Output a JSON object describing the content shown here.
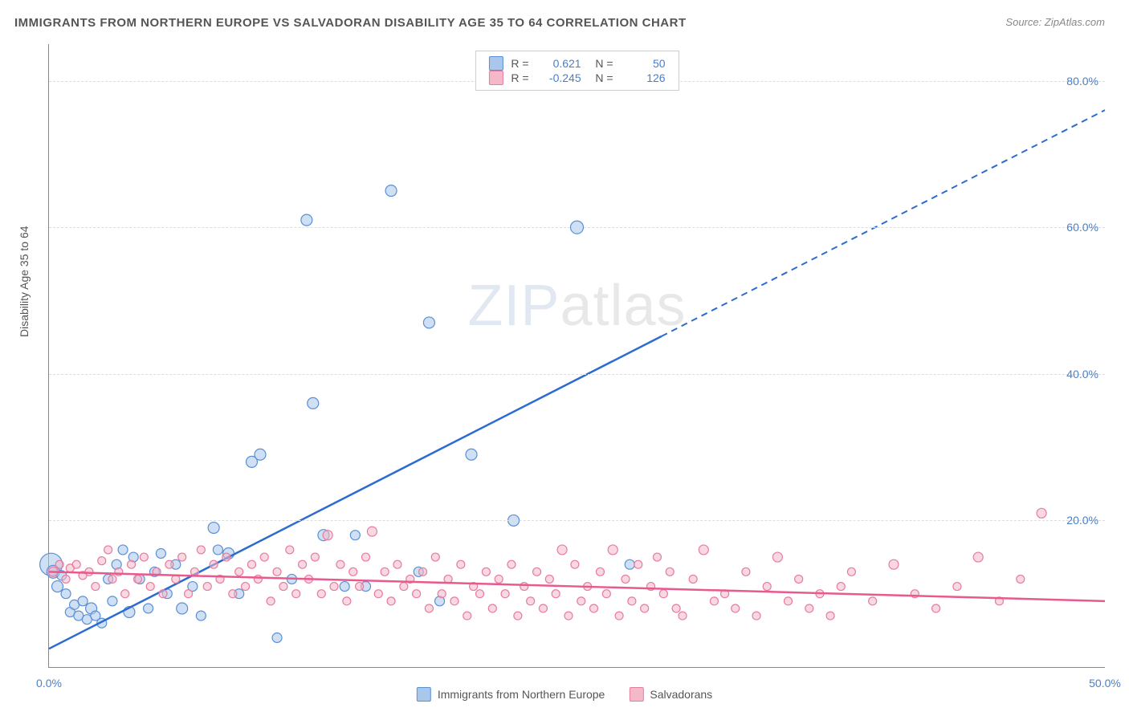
{
  "title": "IMMIGRANTS FROM NORTHERN EUROPE VS SALVADORAN DISABILITY AGE 35 TO 64 CORRELATION CHART",
  "source_label": "Source:",
  "source_name": "ZipAtlas.com",
  "y_axis_title": "Disability Age 35 to 64",
  "watermark": {
    "part1": "ZIP",
    "part2": "atlas"
  },
  "chart": {
    "type": "scatter",
    "xlim": [
      0,
      50
    ],
    "ylim": [
      0,
      85
    ],
    "x_ticks": [
      {
        "value": 0,
        "label": "0.0%"
      },
      {
        "value": 50,
        "label": "50.0%"
      }
    ],
    "y_ticks": [
      {
        "value": 20,
        "label": "20.0%"
      },
      {
        "value": 40,
        "label": "40.0%"
      },
      {
        "value": 60,
        "label": "60.0%"
      },
      {
        "value": 80,
        "label": "80.0%"
      }
    ],
    "background_color": "#ffffff",
    "grid_color": "#dddddd",
    "axis_color": "#888888",
    "series": [
      {
        "name": "Immigrants from Northern Europe",
        "fill_color": "#a9c6eb",
        "stroke_color": "#5a8fd6",
        "fill_opacity": 0.55,
        "line_color": "#2c6bd1",
        "R": "0.621",
        "N": "50",
        "trend": {
          "x1": 0,
          "y1": 2.5,
          "x2": 50,
          "y2": 76,
          "solid_until_x": 29
        },
        "points": [
          {
            "x": 0.1,
            "y": 14,
            "r": 14
          },
          {
            "x": 0.2,
            "y": 13,
            "r": 8
          },
          {
            "x": 0.4,
            "y": 11,
            "r": 7
          },
          {
            "x": 0.6,
            "y": 12.5,
            "r": 6
          },
          {
            "x": 0.8,
            "y": 10,
            "r": 6
          },
          {
            "x": 1.0,
            "y": 7.5,
            "r": 6
          },
          {
            "x": 1.2,
            "y": 8.5,
            "r": 6
          },
          {
            "x": 1.4,
            "y": 7,
            "r": 6
          },
          {
            "x": 1.6,
            "y": 9,
            "r": 6
          },
          {
            "x": 1.8,
            "y": 6.5,
            "r": 6
          },
          {
            "x": 2.0,
            "y": 8,
            "r": 7
          },
          {
            "x": 2.2,
            "y": 7,
            "r": 6
          },
          {
            "x": 2.5,
            "y": 6,
            "r": 6
          },
          {
            "x": 2.8,
            "y": 12,
            "r": 6
          },
          {
            "x": 3.0,
            "y": 9,
            "r": 6
          },
          {
            "x": 3.2,
            "y": 14,
            "r": 6
          },
          {
            "x": 3.5,
            "y": 16,
            "r": 6
          },
          {
            "x": 3.8,
            "y": 7.5,
            "r": 7
          },
          {
            "x": 4.0,
            "y": 15,
            "r": 6
          },
          {
            "x": 4.3,
            "y": 12,
            "r": 6
          },
          {
            "x": 4.7,
            "y": 8,
            "r": 6
          },
          {
            "x": 5.0,
            "y": 13,
            "r": 6
          },
          {
            "x": 5.3,
            "y": 15.5,
            "r": 6
          },
          {
            "x": 5.6,
            "y": 10,
            "r": 6
          },
          {
            "x": 6.0,
            "y": 14,
            "r": 6
          },
          {
            "x": 6.3,
            "y": 8,
            "r": 7
          },
          {
            "x": 6.8,
            "y": 11,
            "r": 6
          },
          {
            "x": 7.2,
            "y": 7,
            "r": 6
          },
          {
            "x": 7.8,
            "y": 19,
            "r": 7
          },
          {
            "x": 8.0,
            "y": 16,
            "r": 6
          },
          {
            "x": 8.5,
            "y": 15.5,
            "r": 7
          },
          {
            "x": 9.0,
            "y": 10,
            "r": 6
          },
          {
            "x": 9.6,
            "y": 28,
            "r": 7
          },
          {
            "x": 10.0,
            "y": 29,
            "r": 7
          },
          {
            "x": 10.8,
            "y": 4,
            "r": 6
          },
          {
            "x": 11.5,
            "y": 12,
            "r": 6
          },
          {
            "x": 12.2,
            "y": 61,
            "r": 7
          },
          {
            "x": 12.5,
            "y": 36,
            "r": 7
          },
          {
            "x": 13.0,
            "y": 18,
            "r": 7
          },
          {
            "x": 14.0,
            "y": 11,
            "r": 6
          },
          {
            "x": 14.5,
            "y": 18,
            "r": 6
          },
          {
            "x": 15.0,
            "y": 11,
            "r": 6
          },
          {
            "x": 16.2,
            "y": 65,
            "r": 7
          },
          {
            "x": 17.5,
            "y": 13,
            "r": 6
          },
          {
            "x": 18.0,
            "y": 47,
            "r": 7
          },
          {
            "x": 18.5,
            "y": 9,
            "r": 6
          },
          {
            "x": 20.0,
            "y": 29,
            "r": 7
          },
          {
            "x": 22.0,
            "y": 20,
            "r": 7
          },
          {
            "x": 25.0,
            "y": 60,
            "r": 8
          },
          {
            "x": 27.5,
            "y": 14,
            "r": 6
          }
        ]
      },
      {
        "name": "Salvadorans",
        "fill_color": "#f4b9c9",
        "stroke_color": "#e87ba0",
        "fill_opacity": 0.55,
        "line_color": "#e85a8f",
        "R": "-0.245",
        "N": "126",
        "trend": {
          "x1": 0,
          "y1": 13,
          "x2": 50,
          "y2": 9,
          "solid_until_x": 50
        },
        "points": [
          {
            "x": 0.2,
            "y": 13,
            "r": 6
          },
          {
            "x": 0.5,
            "y": 14,
            "r": 5
          },
          {
            "x": 0.8,
            "y": 12,
            "r": 5
          },
          {
            "x": 1.0,
            "y": 13.5,
            "r": 5
          },
          {
            "x": 1.3,
            "y": 14,
            "r": 5
          },
          {
            "x": 1.6,
            "y": 12.5,
            "r": 5
          },
          {
            "x": 1.9,
            "y": 13,
            "r": 5
          },
          {
            "x": 2.2,
            "y": 11,
            "r": 5
          },
          {
            "x": 2.5,
            "y": 14.5,
            "r": 5
          },
          {
            "x": 2.8,
            "y": 16,
            "r": 5
          },
          {
            "x": 3.0,
            "y": 12,
            "r": 5
          },
          {
            "x": 3.3,
            "y": 13,
            "r": 5
          },
          {
            "x": 3.6,
            "y": 10,
            "r": 5
          },
          {
            "x": 3.9,
            "y": 14,
            "r": 5
          },
          {
            "x": 4.2,
            "y": 12,
            "r": 5
          },
          {
            "x": 4.5,
            "y": 15,
            "r": 5
          },
          {
            "x": 4.8,
            "y": 11,
            "r": 5
          },
          {
            "x": 5.1,
            "y": 13,
            "r": 5
          },
          {
            "x": 5.4,
            "y": 10,
            "r": 5
          },
          {
            "x": 5.7,
            "y": 14,
            "r": 5
          },
          {
            "x": 6.0,
            "y": 12,
            "r": 5
          },
          {
            "x": 6.3,
            "y": 15,
            "r": 5
          },
          {
            "x": 6.6,
            "y": 10,
            "r": 5
          },
          {
            "x": 6.9,
            "y": 13,
            "r": 5
          },
          {
            "x": 7.2,
            "y": 16,
            "r": 5
          },
          {
            "x": 7.5,
            "y": 11,
            "r": 5
          },
          {
            "x": 7.8,
            "y": 14,
            "r": 5
          },
          {
            "x": 8.1,
            "y": 12,
            "r": 5
          },
          {
            "x": 8.4,
            "y": 15,
            "r": 5
          },
          {
            "x": 8.7,
            "y": 10,
            "r": 5
          },
          {
            "x": 9.0,
            "y": 13,
            "r": 5
          },
          {
            "x": 9.3,
            "y": 11,
            "r": 5
          },
          {
            "x": 9.6,
            "y": 14,
            "r": 5
          },
          {
            "x": 9.9,
            "y": 12,
            "r": 5
          },
          {
            "x": 10.2,
            "y": 15,
            "r": 5
          },
          {
            "x": 10.5,
            "y": 9,
            "r": 5
          },
          {
            "x": 10.8,
            "y": 13,
            "r": 5
          },
          {
            "x": 11.1,
            "y": 11,
            "r": 5
          },
          {
            "x": 11.4,
            "y": 16,
            "r": 5
          },
          {
            "x": 11.7,
            "y": 10,
            "r": 5
          },
          {
            "x": 12.0,
            "y": 14,
            "r": 5
          },
          {
            "x": 12.3,
            "y": 12,
            "r": 5
          },
          {
            "x": 12.6,
            "y": 15,
            "r": 5
          },
          {
            "x": 12.9,
            "y": 10,
            "r": 5
          },
          {
            "x": 13.2,
            "y": 18,
            "r": 6
          },
          {
            "x": 13.5,
            "y": 11,
            "r": 5
          },
          {
            "x": 13.8,
            "y": 14,
            "r": 5
          },
          {
            "x": 14.1,
            "y": 9,
            "r": 5
          },
          {
            "x": 14.4,
            "y": 13,
            "r": 5
          },
          {
            "x": 14.7,
            "y": 11,
            "r": 5
          },
          {
            "x": 15.0,
            "y": 15,
            "r": 5
          },
          {
            "x": 15.3,
            "y": 18.5,
            "r": 6
          },
          {
            "x": 15.6,
            "y": 10,
            "r": 5
          },
          {
            "x": 15.9,
            "y": 13,
            "r": 5
          },
          {
            "x": 16.2,
            "y": 9,
            "r": 5
          },
          {
            "x": 16.5,
            "y": 14,
            "r": 5
          },
          {
            "x": 16.8,
            "y": 11,
            "r": 5
          },
          {
            "x": 17.1,
            "y": 12,
            "r": 5
          },
          {
            "x": 17.4,
            "y": 10,
            "r": 5
          },
          {
            "x": 17.7,
            "y": 13,
            "r": 5
          },
          {
            "x": 18.0,
            "y": 8,
            "r": 5
          },
          {
            "x": 18.3,
            "y": 15,
            "r": 5
          },
          {
            "x": 18.6,
            "y": 10,
            "r": 5
          },
          {
            "x": 18.9,
            "y": 12,
            "r": 5
          },
          {
            "x": 19.2,
            "y": 9,
            "r": 5
          },
          {
            "x": 19.5,
            "y": 14,
            "r": 5
          },
          {
            "x": 19.8,
            "y": 7,
            "r": 5
          },
          {
            "x": 20.1,
            "y": 11,
            "r": 5
          },
          {
            "x": 20.4,
            "y": 10,
            "r": 5
          },
          {
            "x": 20.7,
            "y": 13,
            "r": 5
          },
          {
            "x": 21.0,
            "y": 8,
            "r": 5
          },
          {
            "x": 21.3,
            "y": 12,
            "r": 5
          },
          {
            "x": 21.6,
            "y": 10,
            "r": 5
          },
          {
            "x": 21.9,
            "y": 14,
            "r": 5
          },
          {
            "x": 22.2,
            "y": 7,
            "r": 5
          },
          {
            "x": 22.5,
            "y": 11,
            "r": 5
          },
          {
            "x": 22.8,
            "y": 9,
            "r": 5
          },
          {
            "x": 23.1,
            "y": 13,
            "r": 5
          },
          {
            "x": 23.4,
            "y": 8,
            "r": 5
          },
          {
            "x": 23.7,
            "y": 12,
            "r": 5
          },
          {
            "x": 24.0,
            "y": 10,
            "r": 5
          },
          {
            "x": 24.3,
            "y": 16,
            "r": 6
          },
          {
            "x": 24.6,
            "y": 7,
            "r": 5
          },
          {
            "x": 24.9,
            "y": 14,
            "r": 5
          },
          {
            "x": 25.2,
            "y": 9,
            "r": 5
          },
          {
            "x": 25.5,
            "y": 11,
            "r": 5
          },
          {
            "x": 25.8,
            "y": 8,
            "r": 5
          },
          {
            "x": 26.1,
            "y": 13,
            "r": 5
          },
          {
            "x": 26.4,
            "y": 10,
            "r": 5
          },
          {
            "x": 26.7,
            "y": 16,
            "r": 6
          },
          {
            "x": 27.0,
            "y": 7,
            "r": 5
          },
          {
            "x": 27.3,
            "y": 12,
            "r": 5
          },
          {
            "x": 27.6,
            "y": 9,
            "r": 5
          },
          {
            "x": 27.9,
            "y": 14,
            "r": 5
          },
          {
            "x": 28.2,
            "y": 8,
            "r": 5
          },
          {
            "x": 28.5,
            "y": 11,
            "r": 5
          },
          {
            "x": 28.8,
            "y": 15,
            "r": 5
          },
          {
            "x": 29.1,
            "y": 10,
            "r": 5
          },
          {
            "x": 29.4,
            "y": 13,
            "r": 5
          },
          {
            "x": 29.7,
            "y": 8,
            "r": 5
          },
          {
            "x": 30.0,
            "y": 7,
            "r": 5
          },
          {
            "x": 30.5,
            "y": 12,
            "r": 5
          },
          {
            "x": 31.0,
            "y": 16,
            "r": 6
          },
          {
            "x": 31.5,
            "y": 9,
            "r": 5
          },
          {
            "x": 32.0,
            "y": 10,
            "r": 5
          },
          {
            "x": 32.5,
            "y": 8,
            "r": 5
          },
          {
            "x": 33.0,
            "y": 13,
            "r": 5
          },
          {
            "x": 33.5,
            "y": 7,
            "r": 5
          },
          {
            "x": 34.0,
            "y": 11,
            "r": 5
          },
          {
            "x": 34.5,
            "y": 15,
            "r": 6
          },
          {
            "x": 35.0,
            "y": 9,
            "r": 5
          },
          {
            "x": 35.5,
            "y": 12,
            "r": 5
          },
          {
            "x": 36.0,
            "y": 8,
            "r": 5
          },
          {
            "x": 36.5,
            "y": 10,
            "r": 5
          },
          {
            "x": 37.0,
            "y": 7,
            "r": 5
          },
          {
            "x": 37.5,
            "y": 11,
            "r": 5
          },
          {
            "x": 38.0,
            "y": 13,
            "r": 5
          },
          {
            "x": 39.0,
            "y": 9,
            "r": 5
          },
          {
            "x": 40.0,
            "y": 14,
            "r": 6
          },
          {
            "x": 41.0,
            "y": 10,
            "r": 5
          },
          {
            "x": 42.0,
            "y": 8,
            "r": 5
          },
          {
            "x": 43.0,
            "y": 11,
            "r": 5
          },
          {
            "x": 44.0,
            "y": 15,
            "r": 6
          },
          {
            "x": 45.0,
            "y": 9,
            "r": 5
          },
          {
            "x": 46.0,
            "y": 12,
            "r": 5
          },
          {
            "x": 47.0,
            "y": 21,
            "r": 6
          }
        ]
      }
    ]
  }
}
